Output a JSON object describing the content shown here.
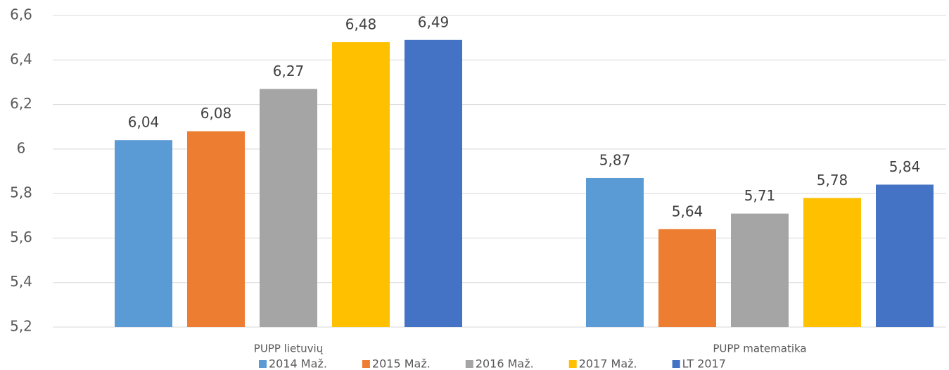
{
  "chart_data": {
    "type": "bar",
    "categories": [
      "PUPP lietuvių",
      "PUPP matematika"
    ],
    "series": [
      {
        "name": "2014 Maž.",
        "color": "#5b9bd5",
        "values": [
          6.04,
          5.87
        ],
        "value_labels": [
          "6,04",
          "5,87"
        ]
      },
      {
        "name": "2015 Maž.",
        "color": "#ed7d31",
        "values": [
          6.08,
          5.64
        ],
        "value_labels": [
          "6,08",
          "5,64"
        ]
      },
      {
        "name": "2016 Maž.",
        "color": "#a5a5a5",
        "values": [
          6.27,
          5.71
        ],
        "value_labels": [
          "6,27",
          "5,71"
        ]
      },
      {
        "name": "2017 Maž.",
        "color": "#ffc000",
        "values": [
          6.48,
          5.78
        ],
        "value_labels": [
          "6,48",
          "5,78"
        ]
      },
      {
        "name": "LT 2017",
        "color": "#4472c4",
        "values": [
          6.49,
          5.84
        ],
        "value_labels": [
          "6,49",
          "5,84"
        ]
      }
    ],
    "ylim": [
      5.2,
      6.6
    ],
    "yticks": [
      {
        "value": 5.2,
        "label": "5,2"
      },
      {
        "value": 5.4,
        "label": "5,4"
      },
      {
        "value": 5.6,
        "label": "5,6"
      },
      {
        "value": 5.8,
        "label": "5,8"
      },
      6,
      {
        "value": 6.2,
        "label": "6,2"
      },
      {
        "value": 6.4,
        "label": "6,4"
      },
      {
        "value": 6.6,
        "label": "6,6"
      }
    ],
    "grid": true,
    "legend": "bottom"
  }
}
